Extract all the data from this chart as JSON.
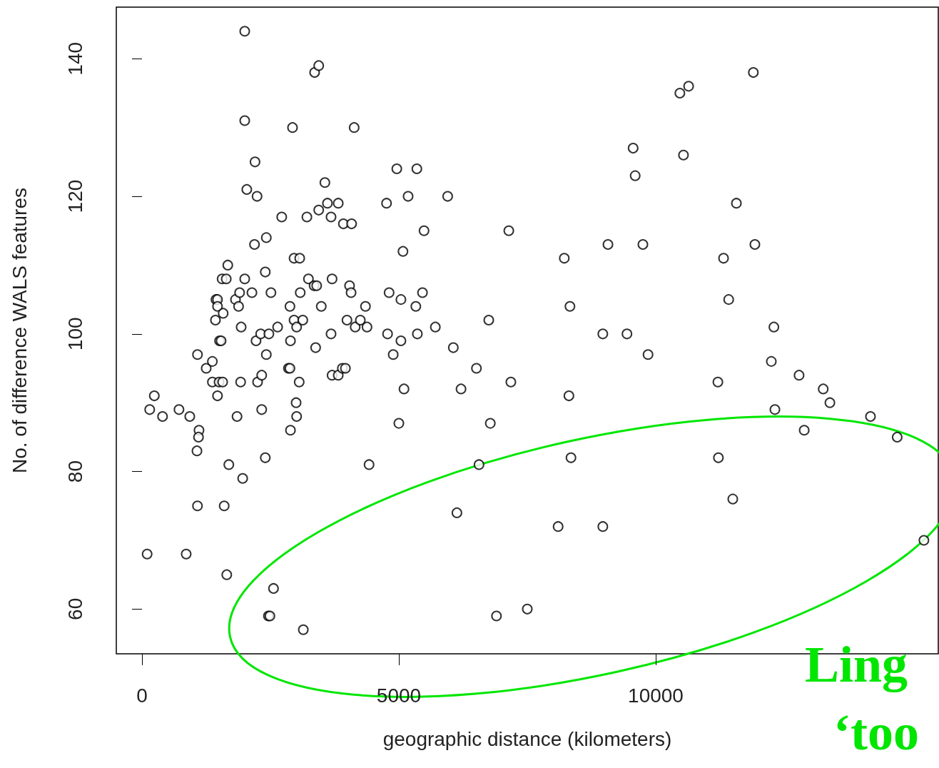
{
  "chart_data": {
    "type": "scatter",
    "xlabel": "geographic distance (kilometers)",
    "ylabel": "No. of difference WALS features",
    "xlim": [
      -500,
      15500
    ],
    "ylim": [
      53.5,
      147.5
    ],
    "xticks": [
      0,
      5000,
      10000
    ],
    "yticks": [
      60,
      80,
      100,
      120,
      140
    ],
    "marker": "circle",
    "annotations": [
      "Ling",
      "‘too"
    ],
    "series": [
      {
        "color": "#000000",
        "x": [
          100,
          150,
          240,
          400,
          720,
          860,
          930,
          1080,
          1110,
          1100,
          1070,
          1080,
          1250,
          1370,
          1370,
          1430,
          1440,
          1470,
          1470,
          1470,
          1500,
          1510,
          1540,
          1570,
          1560,
          1580,
          1600,
          1640,
          1670,
          1650,
          1690,
          1820,
          1850,
          1880,
          1900,
          1930,
          1920,
          1960,
          2000,
          2000,
          2000,
          2040,
          2140,
          2190,
          2200,
          2240,
          2220,
          2250,
          2310,
          2330,
          2330,
          2400,
          2420,
          2400,
          2420,
          2460,
          2490,
          2470,
          2510,
          2560,
          2640,
          2720,
          2850,
          2880,
          2880,
          2890,
          2890,
          2930,
          2960,
          2960,
          3000,
          3010,
          3070,
          3010,
          3060,
          3080,
          3130,
          3140,
          3210,
          3240,
          3350,
          3380,
          3360,
          3400,
          3440,
          3440,
          3490,
          3560,
          3610,
          3680,
          3680,
          3700,
          3700,
          3820,
          3820,
          3900,
          3960,
          3920,
          3990,
          4040,
          4070,
          4080,
          4130,
          4150,
          4250,
          4350,
          4380,
          4420,
          4760,
          4810,
          4780,
          4890,
          4960,
          5040,
          5000,
          5040,
          5080,
          5100,
          5180,
          5330,
          5350,
          5360,
          5460,
          5490,
          5710,
          5950,
          6060,
          6130,
          6210,
          6510,
          6560,
          6750,
          6780,
          6900,
          7140,
          7180,
          7500,
          8100,
          8220,
          8310,
          8330,
          8350,
          8970,
          8970,
          9070,
          9440,
          9560,
          9600,
          9750,
          9850,
          10470,
          10540,
          10640,
          11210,
          11220,
          11320,
          11420,
          11500,
          11570,
          11900,
          11930,
          12250,
          12300,
          12320,
          12790,
          12890,
          13260,
          13390,
          14180,
          14700,
          15220
        ],
        "values": [
          68,
          89,
          91,
          88,
          89,
          68,
          88,
          97,
          86,
          85,
          83,
          75,
          95,
          96,
          93,
          102,
          105,
          105,
          104,
          91,
          93,
          99,
          99,
          93,
          108,
          103,
          75,
          108,
          110,
          65,
          81,
          105,
          88,
          104,
          106,
          101,
          93,
          79,
          144,
          131,
          108,
          121,
          106,
          113,
          125,
          120,
          99,
          93,
          100,
          94,
          89,
          109,
          114,
          82,
          97,
          59,
          59,
          100,
          106,
          63,
          101,
          117,
          95,
          95,
          104,
          99,
          86,
          130,
          111,
          102,
          90,
          101,
          111,
          88,
          93,
          106,
          102,
          57,
          117,
          108,
          107,
          98,
          138,
          107,
          139,
          118,
          104,
          122,
          119,
          117,
          100,
          108,
          94,
          119,
          94,
          95,
          95,
          116,
          102,
          107,
          106,
          116,
          130,
          101,
          102,
          104,
          101,
          81,
          119,
          106,
          100,
          97,
          124,
          105,
          87,
          99,
          112,
          92,
          120,
          104,
          124,
          100,
          106,
          115,
          101,
          120,
          98,
          74,
          92,
          95,
          81,
          102,
          87,
          59,
          115,
          93,
          60,
          72,
          111,
          91,
          104,
          82,
          100,
          72,
          113,
          100,
          127,
          123,
          113,
          97,
          135,
          126,
          136,
          93,
          82,
          111,
          105,
          76,
          119,
          138,
          113,
          96,
          101,
          89,
          94,
          86,
          92,
          90,
          88,
          85,
          70
        ]
      }
    ]
  }
}
